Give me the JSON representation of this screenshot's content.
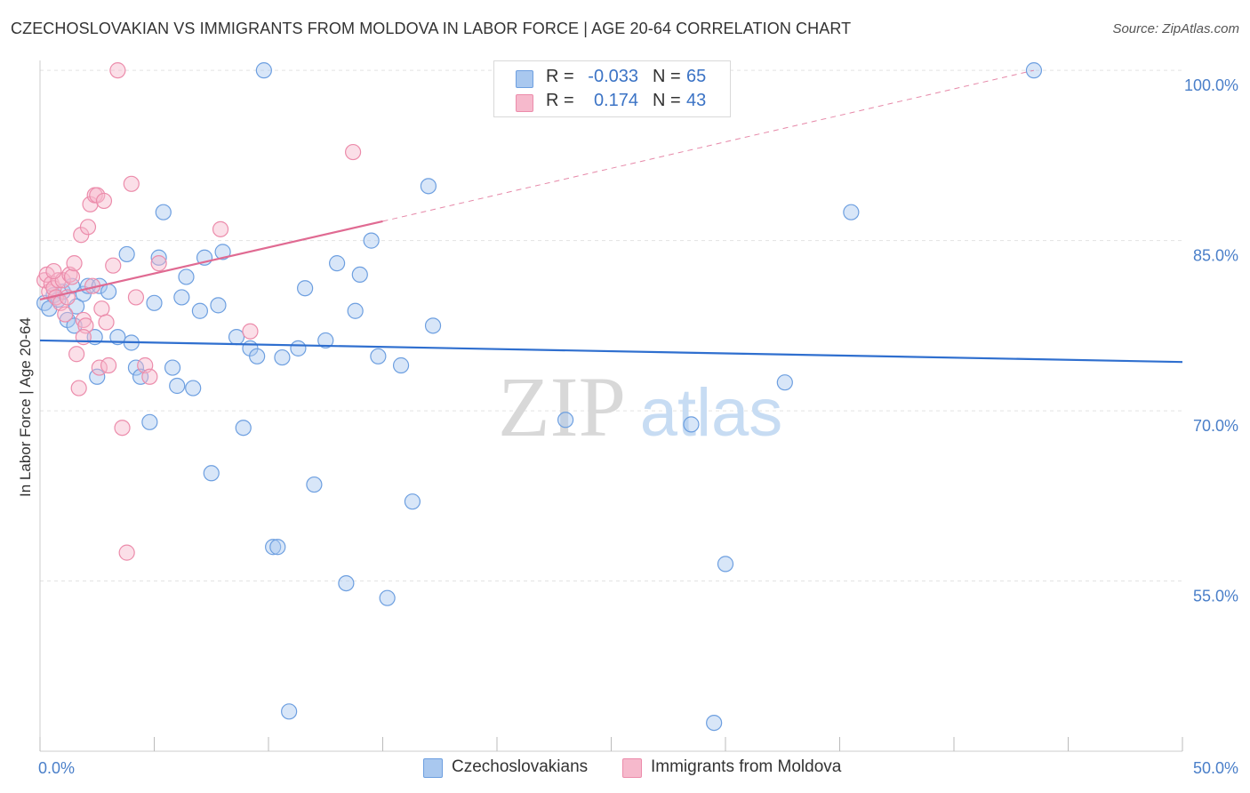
{
  "chart_data": {
    "type": "scatter",
    "title": "CZECHOSLOVAKIAN VS IMMIGRANTS FROM MOLDOVA IN LABOR FORCE | AGE 20-64 CORRELATION CHART",
    "source": "Source: ZipAtlas.com",
    "xlabel": "",
    "ylabel": "In Labor Force | Age 20-64",
    "xlim": [
      0,
      50
    ],
    "ylim": [
      40,
      101.5
    ],
    "x_tick_labels": [
      "0.0%",
      "50.0%"
    ],
    "y_ticks": [
      55,
      70,
      85,
      100
    ],
    "y_tick_labels": [
      "55.0%",
      "70.0%",
      "85.0%",
      "100.0%"
    ],
    "watermark": {
      "zip": "ZIP",
      "atlas": "atlas"
    },
    "colors": {
      "blue_fill": "#a9c8ef",
      "blue_stroke": "#6d9fe0",
      "blue_line": "#2f6fcf",
      "pink_fill": "#f6b9cc",
      "pink_stroke": "#ec8cab",
      "pink_line": "#e06a92",
      "tick_text": "#4a7fc9",
      "grid": "#e3e3e3"
    },
    "legend": {
      "r_label": "R =",
      "n_label": "N =",
      "rows": [
        {
          "r": "-0.033",
          "n": "65"
        },
        {
          "r": "0.174",
          "n": "43"
        }
      ]
    },
    "series": [
      {
        "name": "Czechoslovakians",
        "r": -0.033,
        "n": 65,
        "trend": {
          "x0": 0,
          "y0": 76.2,
          "x1": 50,
          "y1": 74.3
        },
        "points": [
          [
            0.2,
            79.5
          ],
          [
            0.4,
            79.0
          ],
          [
            0.6,
            80.2
          ],
          [
            0.8,
            79.8
          ],
          [
            1.0,
            80.5
          ],
          [
            1.2,
            78.0
          ],
          [
            1.4,
            81.0
          ],
          [
            1.6,
            79.2
          ],
          [
            1.9,
            80.3
          ],
          [
            2.1,
            81.0
          ],
          [
            2.4,
            76.5
          ],
          [
            2.6,
            81.0
          ],
          [
            3.0,
            80.5
          ],
          [
            3.4,
            76.5
          ],
          [
            3.8,
            83.8
          ],
          [
            4.0,
            76.0
          ],
          [
            4.2,
            73.8
          ],
          [
            4.4,
            73.0
          ],
          [
            4.8,
            69.0
          ],
          [
            5.0,
            79.5
          ],
          [
            5.2,
            83.5
          ],
          [
            5.4,
            87.5
          ],
          [
            5.8,
            73.8
          ],
          [
            6.0,
            72.2
          ],
          [
            6.2,
            80.0
          ],
          [
            6.4,
            81.8
          ],
          [
            6.7,
            72.0
          ],
          [
            7.0,
            78.8
          ],
          [
            7.2,
            83.5
          ],
          [
            7.5,
            64.5
          ],
          [
            7.8,
            79.3
          ],
          [
            8.0,
            84.0
          ],
          [
            8.6,
            76.5
          ],
          [
            8.9,
            68.5
          ],
          [
            9.2,
            75.5
          ],
          [
            9.5,
            74.8
          ],
          [
            9.8,
            100.0
          ],
          [
            10.2,
            58.0
          ],
          [
            10.4,
            58.0
          ],
          [
            10.6,
            74.7
          ],
          [
            10.9,
            43.5
          ],
          [
            11.3,
            75.5
          ],
          [
            11.6,
            80.8
          ],
          [
            12.0,
            63.5
          ],
          [
            12.5,
            76.2
          ],
          [
            13.0,
            83.0
          ],
          [
            13.4,
            54.8
          ],
          [
            13.8,
            78.8
          ],
          [
            14.0,
            82.0
          ],
          [
            14.5,
            85.0
          ],
          [
            14.8,
            74.8
          ],
          [
            15.2,
            53.5
          ],
          [
            15.8,
            74.0
          ],
          [
            16.3,
            62.0
          ],
          [
            17.0,
            89.8
          ],
          [
            17.2,
            77.5
          ],
          [
            23.0,
            69.2
          ],
          [
            28.5,
            68.8
          ],
          [
            29.5,
            42.5
          ],
          [
            30.0,
            56.5
          ],
          [
            32.6,
            72.5
          ],
          [
            35.5,
            87.5
          ],
          [
            43.5,
            100.0
          ],
          [
            1.5,
            77.5
          ],
          [
            2.5,
            73.0
          ]
        ]
      },
      {
        "name": "Immigrants from Moldova",
        "r": 0.174,
        "n": 43,
        "trend": {
          "x0": 0,
          "y0": 79.8,
          "x1": 15,
          "y1": 86.7,
          "x_ext": 43.5,
          "y_ext": 100.0
        },
        "points": [
          [
            0.2,
            81.5
          ],
          [
            0.3,
            82.0
          ],
          [
            0.4,
            80.5
          ],
          [
            0.5,
            81.2
          ],
          [
            0.6,
            80.8
          ],
          [
            0.7,
            80.0
          ],
          [
            0.8,
            81.5
          ],
          [
            0.9,
            79.5
          ],
          [
            1.0,
            81.5
          ],
          [
            1.1,
            78.5
          ],
          [
            1.2,
            80.0
          ],
          [
            1.3,
            82.0
          ],
          [
            1.4,
            81.8
          ],
          [
            1.5,
            83.0
          ],
          [
            1.6,
            75.0
          ],
          [
            1.7,
            72.0
          ],
          [
            1.8,
            85.5
          ],
          [
            1.9,
            78.0
          ],
          [
            2.0,
            77.5
          ],
          [
            2.1,
            86.2
          ],
          [
            2.2,
            88.2
          ],
          [
            2.3,
            81.0
          ],
          [
            2.4,
            89.0
          ],
          [
            2.5,
            89.0
          ],
          [
            2.6,
            73.8
          ],
          [
            2.7,
            79.0
          ],
          [
            2.8,
            88.5
          ],
          [
            2.9,
            77.8
          ],
          [
            3.0,
            74.0
          ],
          [
            3.2,
            82.8
          ],
          [
            3.4,
            100.0
          ],
          [
            3.6,
            68.5
          ],
          [
            3.8,
            57.5
          ],
          [
            4.0,
            90.0
          ],
          [
            4.2,
            80.0
          ],
          [
            4.6,
            74.0
          ],
          [
            4.8,
            73.0
          ],
          [
            5.2,
            83.0
          ],
          [
            7.9,
            86.0
          ],
          [
            9.2,
            77.0
          ],
          [
            13.7,
            92.8
          ],
          [
            1.9,
            76.5
          ],
          [
            0.6,
            82.3
          ]
        ]
      }
    ]
  }
}
